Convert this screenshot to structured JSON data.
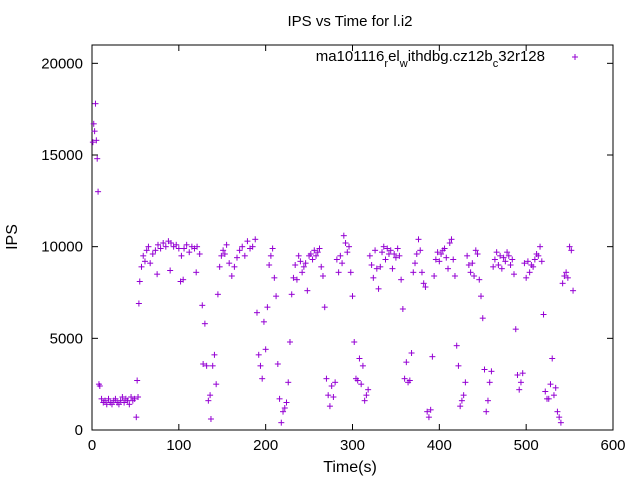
{
  "chart_data": {
    "type": "scatter",
    "title": "IPS vs Time for l.i2",
    "xlabel": "Time(s)",
    "ylabel": "IPS",
    "xlim": [
      0,
      600
    ],
    "ylim": [
      0,
      21000
    ],
    "xticks": [
      0,
      100,
      200,
      300,
      400,
      500,
      600
    ],
    "yticks": [
      0,
      5000,
      10000,
      15000,
      20000
    ],
    "grid": false,
    "legend_position": "top-right",
    "marker": "+",
    "color": "#9400d3",
    "series": [
      {
        "name_parts": [
          "ma101116",
          "r",
          "el",
          "w",
          "ithdbg.cz12b",
          "c",
          "32r128"
        ],
        "points": [
          [
            1,
            15700
          ],
          [
            2,
            16700
          ],
          [
            3,
            16300
          ],
          [
            4,
            17800
          ],
          [
            5,
            15800
          ],
          [
            6,
            14800
          ],
          [
            7,
            13000
          ],
          [
            8,
            2500
          ],
          [
            9,
            2400
          ],
          [
            11,
            1700
          ],
          [
            13,
            1500
          ],
          [
            15,
            1600
          ],
          [
            17,
            1400
          ],
          [
            19,
            1700
          ],
          [
            21,
            1500
          ],
          [
            23,
            1400
          ],
          [
            25,
            1600
          ],
          [
            27,
            1700
          ],
          [
            29,
            1500
          ],
          [
            31,
            1400
          ],
          [
            33,
            1600
          ],
          [
            35,
            1800
          ],
          [
            37,
            1500
          ],
          [
            39,
            1700
          ],
          [
            41,
            1600
          ],
          [
            43,
            1400
          ],
          [
            45,
            1800
          ],
          [
            47,
            1600
          ],
          [
            49,
            1700
          ],
          [
            51,
            700
          ],
          [
            52,
            2700
          ],
          [
            53,
            1800
          ],
          [
            54,
            6900
          ],
          [
            55,
            8100
          ],
          [
            57,
            8900
          ],
          [
            59,
            9500
          ],
          [
            61,
            9200
          ],
          [
            63,
            9800
          ],
          [
            65,
            10000
          ],
          [
            67,
            9100
          ],
          [
            70,
            9600
          ],
          [
            73,
            9800
          ],
          [
            76,
            10100
          ],
          [
            79,
            9900
          ],
          [
            82,
            10200
          ],
          [
            85,
            10000
          ],
          [
            88,
            10300
          ],
          [
            91,
            10200
          ],
          [
            94,
            10000
          ],
          [
            97,
            10100
          ],
          [
            100,
            9900
          ],
          [
            103,
            9500
          ],
          [
            106,
            9900
          ],
          [
            109,
            10100
          ],
          [
            112,
            9700
          ],
          [
            115,
            10000
          ],
          [
            118,
            9900
          ],
          [
            121,
            10000
          ],
          [
            124,
            9600
          ],
          [
            75,
            8500
          ],
          [
            90,
            8700
          ],
          [
            105,
            8200
          ],
          [
            120,
            8600
          ],
          [
            102,
            8100
          ],
          [
            127,
            6800
          ],
          [
            128,
            3600
          ],
          [
            130,
            5800
          ],
          [
            132,
            3500
          ],
          [
            134,
            1600
          ],
          [
            136,
            1900
          ],
          [
            137,
            600
          ],
          [
            139,
            3500
          ],
          [
            141,
            4100
          ],
          [
            143,
            2500
          ],
          [
            145,
            7400
          ],
          [
            147,
            8900
          ],
          [
            149,
            9500
          ],
          [
            151,
            9800
          ],
          [
            153,
            9600
          ],
          [
            155,
            10100
          ],
          [
            158,
            9100
          ],
          [
            161,
            8400
          ],
          [
            164,
            8900
          ],
          [
            167,
            9400
          ],
          [
            170,
            9800
          ],
          [
            173,
            10000
          ],
          [
            176,
            9500
          ],
          [
            179,
            10300
          ],
          [
            182,
            9900
          ],
          [
            185,
            10000
          ],
          [
            188,
            10400
          ],
          [
            190,
            6400
          ],
          [
            192,
            4100
          ],
          [
            194,
            3500
          ],
          [
            196,
            2800
          ],
          [
            198,
            5900
          ],
          [
            200,
            4400
          ],
          [
            202,
            6700
          ],
          [
            204,
            9000
          ],
          [
            206,
            9500
          ],
          [
            208,
            9900
          ],
          [
            210,
            8300
          ],
          [
            212,
            7300
          ],
          [
            214,
            3600
          ],
          [
            216,
            1700
          ],
          [
            218,
            400
          ],
          [
            220,
            1000
          ],
          [
            222,
            1200
          ],
          [
            224,
            1500
          ],
          [
            226,
            2600
          ],
          [
            228,
            4800
          ],
          [
            230,
            7400
          ],
          [
            232,
            8300
          ],
          [
            234,
            9000
          ],
          [
            236,
            8200
          ],
          [
            238,
            9500
          ],
          [
            240,
            9200
          ],
          [
            242,
            8600
          ],
          [
            244,
            8900
          ],
          [
            246,
            9100
          ],
          [
            248,
            7600
          ],
          [
            250,
            9500
          ],
          [
            252,
            9600
          ],
          [
            254,
            9300
          ],
          [
            256,
            9800
          ],
          [
            258,
            9500
          ],
          [
            260,
            9700
          ],
          [
            262,
            9900
          ],
          [
            264,
            8900
          ],
          [
            266,
            8400
          ],
          [
            268,
            6700
          ],
          [
            270,
            2800
          ],
          [
            272,
            1900
          ],
          [
            274,
            1300
          ],
          [
            276,
            2400
          ],
          [
            278,
            1800
          ],
          [
            280,
            2600
          ],
          [
            282,
            9300
          ],
          [
            284,
            8600
          ],
          [
            286,
            9500
          ],
          [
            288,
            9100
          ],
          [
            290,
            10600
          ],
          [
            292,
            10200
          ],
          [
            294,
            9700
          ],
          [
            296,
            10000
          ],
          [
            298,
            8600
          ],
          [
            300,
            7300
          ],
          [
            302,
            4800
          ],
          [
            304,
            2800
          ],
          [
            306,
            2700
          ],
          [
            308,
            3900
          ],
          [
            310,
            2500
          ],
          [
            312,
            3500
          ],
          [
            314,
            1600
          ],
          [
            316,
            1900
          ],
          [
            318,
            2200
          ],
          [
            320,
            9500
          ],
          [
            322,
            9000
          ],
          [
            324,
            8300
          ],
          [
            326,
            9800
          ],
          [
            328,
            8800
          ],
          [
            330,
            7700
          ],
          [
            332,
            8900
          ],
          [
            334,
            9700
          ],
          [
            336,
            10000
          ],
          [
            338,
            9300
          ],
          [
            340,
            9900
          ],
          [
            342,
            9600
          ],
          [
            344,
            9800
          ],
          [
            346,
            8800
          ],
          [
            348,
            9600
          ],
          [
            350,
            9400
          ],
          [
            352,
            9900
          ],
          [
            354,
            9500
          ],
          [
            356,
            8200
          ],
          [
            358,
            6600
          ],
          [
            360,
            2800
          ],
          [
            362,
            3700
          ],
          [
            364,
            2600
          ],
          [
            366,
            2700
          ],
          [
            368,
            4200
          ],
          [
            370,
            8600
          ],
          [
            372,
            9100
          ],
          [
            374,
            9600
          ],
          [
            376,
            10400
          ],
          [
            378,
            9800
          ],
          [
            380,
            8600
          ],
          [
            382,
            8000
          ],
          [
            384,
            7800
          ],
          [
            386,
            1000
          ],
          [
            388,
            700
          ],
          [
            390,
            1100
          ],
          [
            392,
            4000
          ],
          [
            394,
            8400
          ],
          [
            396,
            9300
          ],
          [
            398,
            9700
          ],
          [
            400,
            9200
          ],
          [
            402,
            9600
          ],
          [
            404,
            9800
          ],
          [
            406,
            9900
          ],
          [
            408,
            9400
          ],
          [
            410,
            8800
          ],
          [
            412,
            10200
          ],
          [
            414,
            10400
          ],
          [
            416,
            9300
          ],
          [
            418,
            8400
          ],
          [
            420,
            4600
          ],
          [
            422,
            3500
          ],
          [
            424,
            1300
          ],
          [
            426,
            1600
          ],
          [
            428,
            1900
          ],
          [
            430,
            2600
          ],
          [
            432,
            9500
          ],
          [
            434,
            9000
          ],
          [
            436,
            8600
          ],
          [
            438,
            9100
          ],
          [
            440,
            8400
          ],
          [
            442,
            9800
          ],
          [
            444,
            9600
          ],
          [
            446,
            8200
          ],
          [
            448,
            7300
          ],
          [
            450,
            6100
          ],
          [
            452,
            3300
          ],
          [
            454,
            1000
          ],
          [
            456,
            1600
          ],
          [
            458,
            2600
          ],
          [
            460,
            3200
          ],
          [
            462,
            8900
          ],
          [
            464,
            9300
          ],
          [
            466,
            9700
          ],
          [
            468,
            9000
          ],
          [
            470,
            9500
          ],
          [
            472,
            8800
          ],
          [
            474,
            9400
          ],
          [
            476,
            9200
          ],
          [
            478,
            9700
          ],
          [
            480,
            9500
          ],
          [
            482,
            9000
          ],
          [
            484,
            9300
          ],
          [
            486,
            8500
          ],
          [
            488,
            5500
          ],
          [
            490,
            3000
          ],
          [
            492,
            2200
          ],
          [
            494,
            2600
          ],
          [
            496,
            3100
          ],
          [
            498,
            9100
          ],
          [
            500,
            8300
          ],
          [
            502,
            9200
          ],
          [
            504,
            8600
          ],
          [
            506,
            9000
          ],
          [
            508,
            8900
          ],
          [
            510,
            9300
          ],
          [
            512,
            9600
          ],
          [
            514,
            9500
          ],
          [
            516,
            10000
          ],
          [
            518,
            9200
          ],
          [
            520,
            6300
          ],
          [
            522,
            2100
          ],
          [
            524,
            1700
          ],
          [
            526,
            1700
          ],
          [
            528,
            2500
          ],
          [
            530,
            3900
          ],
          [
            532,
            1900
          ],
          [
            534,
            2300
          ],
          [
            536,
            1000
          ],
          [
            538,
            700
          ],
          [
            540,
            400
          ],
          [
            542,
            8000
          ],
          [
            544,
            8400
          ],
          [
            546,
            8600
          ],
          [
            548,
            8300
          ],
          [
            550,
            10000
          ],
          [
            552,
            9800
          ],
          [
            554,
            7600
          ]
        ]
      }
    ]
  }
}
